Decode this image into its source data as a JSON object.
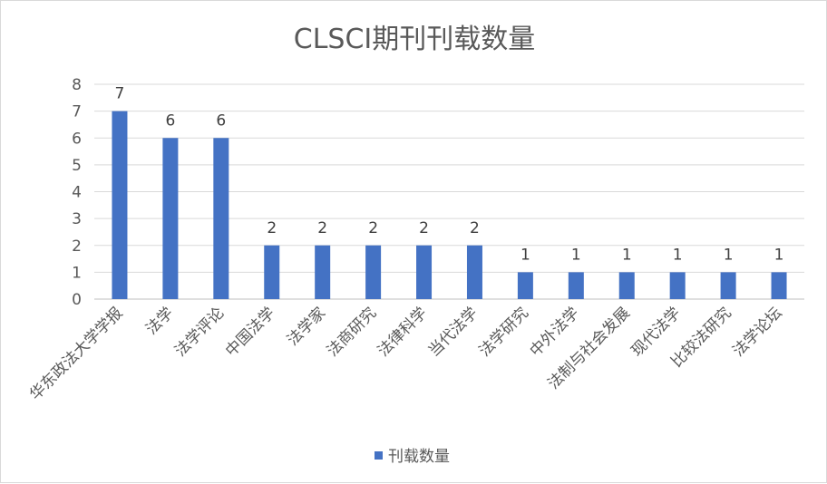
{
  "chart_data": {
    "type": "bar",
    "title": "CLSCI期刊刊载数量",
    "xlabel": "",
    "ylabel": "",
    "ylim": [
      0,
      8
    ],
    "yticks": [
      0,
      1,
      2,
      3,
      4,
      5,
      6,
      7,
      8
    ],
    "grid": true,
    "legend_position": "bottom",
    "categories": [
      "华东政法大学学报",
      "法学",
      "法学评论",
      "中国法学",
      "法学家",
      "法商研究",
      "法律科学",
      "当代法学",
      "法学研究",
      "中外法学",
      "法制与社会发展",
      "现代法学",
      "比较法研究",
      "法学论坛"
    ],
    "series": [
      {
        "name": "刊载数量",
        "color": "#4472c4",
        "values": [
          7,
          6,
          6,
          2,
          2,
          2,
          2,
          2,
          1,
          1,
          1,
          1,
          1,
          1
        ]
      }
    ],
    "data_labels": true
  }
}
